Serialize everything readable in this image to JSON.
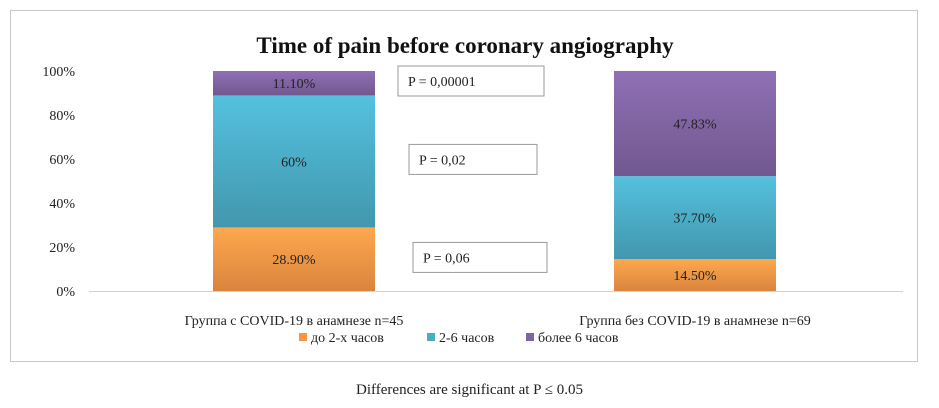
{
  "chart_data": {
    "type": "bar",
    "stacked": true,
    "title": "Time of pain before coronary angiography",
    "categories": [
      "Группа с COVID-19 в анамнезе n=45",
      "Группа без COVID-19 в анамнезе n=69"
    ],
    "series": [
      {
        "name": "до 2-х часов",
        "values": [
          28.9,
          14.5
        ],
        "labels": [
          "28.90%",
          "14.50%"
        ],
        "color": "#f79646"
      },
      {
        "name": "2-6 часов",
        "values": [
          60,
          37.7
        ],
        "labels": [
          "60%",
          "37.70%"
        ],
        "color": "#4bacc6"
      },
      {
        "name": "более 6 часов",
        "values": [
          11.1,
          47.83
        ],
        "labels": [
          "11.10%",
          "47.83%"
        ],
        "color": "#8064a2"
      }
    ],
    "ylim": [
      0,
      100
    ],
    "yticks": [
      "0%",
      "20%",
      "40%",
      "60%",
      "80%",
      "100%"
    ],
    "grid": false,
    "legend_position": "bottom",
    "annotations": [
      {
        "text": "P = 0,00001",
        "series": "более 6 часов"
      },
      {
        "text": "P = 0,02",
        "series": "2-6 часов"
      },
      {
        "text": "P = 0,06",
        "series": "до 2-х часов"
      }
    ]
  },
  "footnote": "Differences are significant at P ≤ 0.05"
}
